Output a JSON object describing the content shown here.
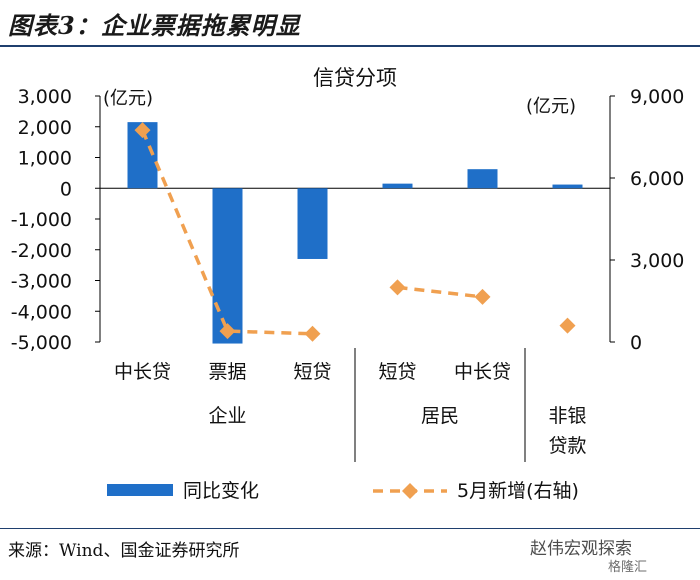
{
  "header": {
    "title": "图表3：企业票据拖累明显"
  },
  "footer": {
    "source": "来源：Wind、国金证券研究所"
  },
  "watermark": {
    "text": "赵伟宏观探索",
    "logo": "格隆汇"
  },
  "chart_data": {
    "type": "bar+line",
    "title": "信贷分项",
    "left_unit": "(亿元)",
    "right_unit": "(亿元)",
    "categories": [
      "中长贷",
      "票据",
      "短贷",
      "短贷",
      "中长贷",
      "非银贷款"
    ],
    "category_labels": [
      "中长贷",
      "票据",
      "短贷",
      "短贷",
      "中长贷",
      ""
    ],
    "groups": [
      {
        "label": "企业",
        "span": [
          0,
          2
        ]
      },
      {
        "label": "居民",
        "span": [
          3,
          4
        ]
      },
      {
        "label_lines": [
          "非银",
          "贷款"
        ],
        "span": [
          5,
          5
        ]
      }
    ],
    "series": [
      {
        "name": "同比变化",
        "type": "bar",
        "axis": "left",
        "color": "#1f6fc8",
        "values": [
          2150,
          -5050,
          -2300,
          150,
          620,
          120
        ]
      },
      {
        "name": "5月新增(右轴)",
        "type": "line",
        "axis": "right",
        "color": "#f0a050",
        "values": [
          7750,
          400,
          300,
          2000,
          1650,
          600
        ],
        "line_segments": [
          [
            0,
            2
          ],
          [
            3,
            4
          ]
        ]
      }
    ],
    "y_left": {
      "min": -5000,
      "max": 3000,
      "ticks": [
        3000,
        2000,
        1000,
        0,
        -1000,
        -2000,
        -3000,
        -4000,
        -5000
      ],
      "tick_labels": [
        "3,000",
        "2,000",
        "1,000",
        "0",
        "-1,000",
        "-2,000",
        "-3,000",
        "-4,000",
        "-5,000"
      ]
    },
    "y_right": {
      "min": 0,
      "max": 9000,
      "ticks": [
        9000,
        6000,
        3000,
        0
      ],
      "tick_labels": [
        "9,000",
        "6,000",
        "3,000",
        "0"
      ]
    },
    "legend_position": "bottom",
    "grid": false
  }
}
